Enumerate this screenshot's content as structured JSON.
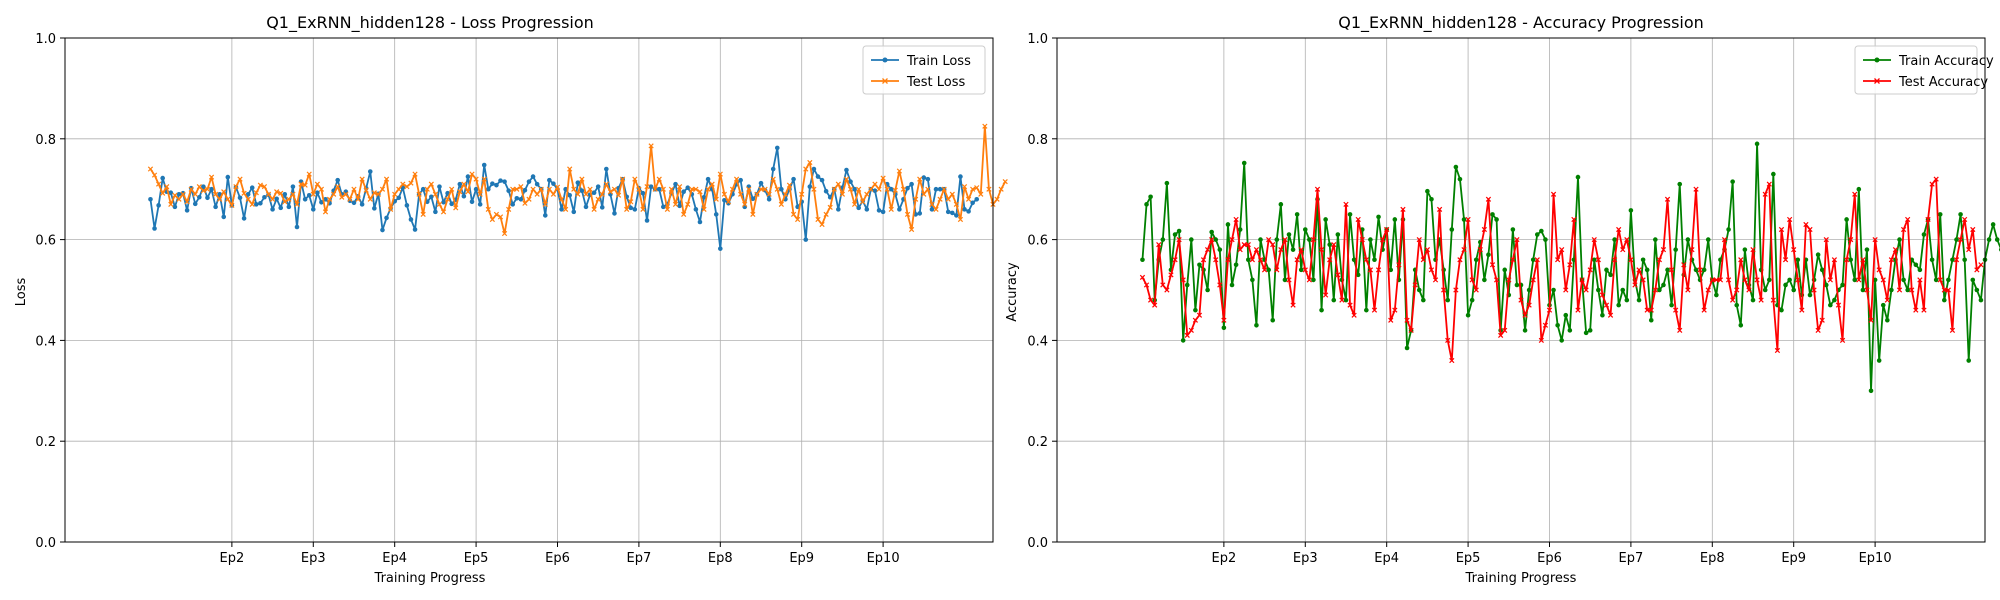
{
  "chart_data": [
    {
      "type": "line",
      "title": "Q1_ExRNN_hidden128 - Loss Progression",
      "xlabel": "Training Progress",
      "ylabel": "Loss",
      "ylim": [
        0,
        1.0
      ],
      "yticks": [
        "0.0",
        "0.2",
        "0.4",
        "0.6",
        "0.8",
        "1.0"
      ],
      "xlim": [
        -21,
        207
      ],
      "x_tick_labels": [
        "Ep2",
        "Ep3",
        "Ep4",
        "Ep5",
        "Ep6",
        "Ep7",
        "Ep8",
        "Ep9",
        "Ep10"
      ],
      "x_tick_positions": [
        20,
        40,
        60,
        80,
        100,
        120,
        140,
        160,
        180
      ],
      "grid": true,
      "legend": "top-right",
      "series": [
        {
          "name": "Train Loss",
          "color": "#1f77b4",
          "marker": "circle",
          "values": [
            0.68,
            0.622,
            0.668,
            0.722,
            0.695,
            0.693,
            0.665,
            0.69,
            0.692,
            0.658,
            0.702,
            0.671,
            0.684,
            0.705,
            0.683,
            0.7,
            0.665,
            0.69,
            0.645,
            0.724,
            0.668,
            0.704,
            0.683,
            0.642,
            0.69,
            0.703,
            0.67,
            0.672,
            0.684,
            0.689,
            0.66,
            0.681,
            0.663,
            0.69,
            0.665,
            0.705,
            0.625,
            0.715,
            0.68,
            0.688,
            0.66,
            0.693,
            0.674,
            0.68,
            0.672,
            0.697,
            0.718,
            0.69,
            0.695,
            0.677,
            0.673,
            0.686,
            0.67,
            0.702,
            0.735,
            0.662,
            0.691,
            0.619,
            0.643,
            0.662,
            0.676,
            0.683,
            0.703,
            0.668,
            0.64,
            0.62,
            0.69,
            0.7,
            0.675,
            0.685,
            0.655,
            0.705,
            0.674,
            0.692,
            0.671,
            0.679,
            0.71,
            0.686,
            0.725,
            0.675,
            0.7,
            0.67,
            0.748,
            0.7,
            0.711,
            0.708,
            0.717,
            0.715,
            0.697,
            0.67,
            0.682,
            0.68,
            0.698,
            0.715,
            0.725,
            0.71,
            0.7,
            0.648,
            0.718,
            0.711,
            0.7,
            0.66,
            0.7,
            0.688,
            0.655,
            0.713,
            0.697,
            0.665,
            0.689,
            0.693,
            0.705,
            0.664,
            0.74,
            0.69,
            0.652,
            0.702,
            0.72,
            0.685,
            0.663,
            0.66,
            0.702,
            0.692,
            0.638,
            0.705,
            0.7,
            0.7,
            0.665,
            0.67,
            0.692,
            0.71,
            0.667,
            0.695,
            0.703,
            0.69,
            0.66,
            0.635,
            0.684,
            0.72,
            0.7,
            0.65,
            0.582,
            0.678,
            0.672,
            0.69,
            0.71,
            0.718,
            0.665,
            0.705,
            0.681,
            0.69,
            0.712,
            0.698,
            0.68,
            0.74,
            0.782,
            0.7,
            0.68,
            0.7,
            0.72,
            0.665,
            0.675,
            0.6,
            0.705,
            0.74,
            0.725,
            0.718,
            0.696,
            0.684,
            0.7,
            0.66,
            0.703,
            0.738,
            0.715,
            0.7,
            0.663,
            0.677,
            0.66,
            0.7,
            0.697,
            0.658,
            0.655,
            0.71,
            0.7,
            0.69,
            0.66,
            0.68,
            0.702,
            0.71,
            0.65,
            0.652,
            0.723,
            0.72,
            0.66,
            0.7,
            0.7,
            0.7,
            0.655,
            0.653,
            0.648,
            0.725,
            0.66,
            0.656,
            0.673,
            0.68
          ]
        },
        {
          "name": "Test Loss",
          "color": "#ff7f0e",
          "marker": "x",
          "values": [
            0.74,
            0.728,
            0.71,
            0.692,
            0.705,
            0.67,
            0.688,
            0.68,
            0.69,
            0.675,
            0.7,
            0.69,
            0.705,
            0.697,
            0.7,
            0.724,
            0.69,
            0.68,
            0.695,
            0.68,
            0.668,
            0.705,
            0.72,
            0.692,
            0.68,
            0.67,
            0.693,
            0.708,
            0.705,
            0.69,
            0.68,
            0.695,
            0.692,
            0.675,
            0.68,
            0.69,
            0.67,
            0.71,
            0.708,
            0.73,
            0.69,
            0.71,
            0.7,
            0.655,
            0.68,
            0.69,
            0.705,
            0.684,
            0.69,
            0.68,
            0.7,
            0.68,
            0.72,
            0.698,
            0.68,
            0.693,
            0.69,
            0.7,
            0.72,
            0.66,
            0.69,
            0.7,
            0.71,
            0.705,
            0.712,
            0.73,
            0.69,
            0.65,
            0.7,
            0.71,
            0.69,
            0.67,
            0.655,
            0.68,
            0.7,
            0.663,
            0.695,
            0.71,
            0.695,
            0.73,
            0.72,
            0.69,
            0.72,
            0.66,
            0.64,
            0.65,
            0.645,
            0.612,
            0.66,
            0.7,
            0.7,
            0.705,
            0.672,
            0.68,
            0.7,
            0.69,
            0.7,
            0.67,
            0.7,
            0.69,
            0.704,
            0.68,
            0.66,
            0.74,
            0.7,
            0.69,
            0.72,
            0.69,
            0.7,
            0.66,
            0.68,
            0.69,
            0.71,
            0.695,
            0.7,
            0.688,
            0.72,
            0.66,
            0.675,
            0.72,
            0.7,
            0.66,
            0.705,
            0.786,
            0.7,
            0.72,
            0.7,
            0.66,
            0.7,
            0.67,
            0.705,
            0.65,
            0.67,
            0.7,
            0.7,
            0.695,
            0.66,
            0.7,
            0.71,
            0.68,
            0.73,
            0.69,
            0.675,
            0.7,
            0.72,
            0.69,
            0.67,
            0.7,
            0.65,
            0.69,
            0.7,
            0.7,
            0.69,
            0.72,
            0.7,
            0.67,
            0.69,
            0.708,
            0.65,
            0.64,
            0.69,
            0.74,
            0.753,
            0.7,
            0.64,
            0.63,
            0.65,
            0.664,
            0.7,
            0.71,
            0.69,
            0.72,
            0.7,
            0.67,
            0.7,
            0.675,
            0.69,
            0.7,
            0.71,
            0.7,
            0.722,
            0.7,
            0.66,
            0.698,
            0.736,
            0.7,
            0.65,
            0.62,
            0.68,
            0.72,
            0.69,
            0.7,
            0.67,
            0.66,
            0.68,
            0.7,
            0.68,
            0.69,
            0.67,
            0.64,
            0.705,
            0.68,
            0.7,
            0.703,
            0.69,
            0.825,
            0.7,
            0.67,
            0.68,
            0.7,
            0.715
          ]
        }
      ]
    },
    {
      "type": "line",
      "title": "Q1_ExRNN_hidden128 - Accuracy Progression",
      "xlabel": "Training Progress",
      "ylabel": "Accuracy",
      "ylim": [
        0,
        1.0
      ],
      "yticks": [
        "0.0",
        "0.2",
        "0.4",
        "0.6",
        "0.8",
        "1.0"
      ],
      "xlim": [
        -21,
        207
      ],
      "x_tick_labels": [
        "Ep2",
        "Ep3",
        "Ep4",
        "Ep5",
        "Ep6",
        "Ep7",
        "Ep8",
        "Ep9",
        "Ep10"
      ],
      "x_tick_positions": [
        20,
        40,
        60,
        80,
        100,
        120,
        140,
        160,
        180
      ],
      "grid": true,
      "legend": "top-right",
      "series": [
        {
          "name": "Train Accuracy",
          "color": "#008000",
          "marker": "circle",
          "values": [
            0.56,
            0.67,
            0.685,
            0.48,
            0.56,
            0.6,
            0.712,
            0.54,
            0.61,
            0.617,
            0.4,
            0.51,
            0.6,
            0.46,
            0.55,
            0.54,
            0.5,
            0.615,
            0.6,
            0.58,
            0.425,
            0.63,
            0.51,
            0.55,
            0.62,
            0.752,
            0.56,
            0.52,
            0.43,
            0.6,
            0.56,
            0.54,
            0.44,
            0.6,
            0.67,
            0.52,
            0.61,
            0.58,
            0.65,
            0.54,
            0.62,
            0.6,
            0.52,
            0.68,
            0.46,
            0.64,
            0.59,
            0.48,
            0.61,
            0.52,
            0.48,
            0.65,
            0.56,
            0.53,
            0.62,
            0.46,
            0.6,
            0.56,
            0.645,
            0.58,
            0.62,
            0.54,
            0.64,
            0.52,
            0.64,
            0.385,
            0.42,
            0.54,
            0.5,
            0.48,
            0.696,
            0.68,
            0.56,
            0.6,
            0.54,
            0.48,
            0.62,
            0.744,
            0.72,
            0.64,
            0.45,
            0.48,
            0.56,
            0.595,
            0.52,
            0.57,
            0.65,
            0.64,
            0.42,
            0.54,
            0.49,
            0.62,
            0.51,
            0.51,
            0.42,
            0.5,
            0.56,
            0.61,
            0.617,
            0.6,
            0.47,
            0.5,
            0.43,
            0.4,
            0.45,
            0.42,
            0.56,
            0.724,
            0.52,
            0.415,
            0.42,
            0.56,
            0.5,
            0.45,
            0.54,
            0.53,
            0.6,
            0.47,
            0.5,
            0.48,
            0.658,
            0.52,
            0.48,
            0.56,
            0.54,
            0.44,
            0.6,
            0.5,
            0.51,
            0.54,
            0.47,
            0.58,
            0.71,
            0.53,
            0.6,
            0.56,
            0.54,
            0.52,
            0.54,
            0.6,
            0.52,
            0.49,
            0.56,
            0.58,
            0.62,
            0.715,
            0.47,
            0.43,
            0.58,
            0.51,
            0.48,
            0.79,
            0.54,
            0.5,
            0.52,
            0.73,
            0.47,
            0.46,
            0.51,
            0.52,
            0.5,
            0.56,
            0.49,
            0.56,
            0.49,
            0.52,
            0.57,
            0.54,
            0.51,
            0.47,
            0.48,
            0.5,
            0.51,
            0.64,
            0.56,
            0.52,
            0.7,
            0.5,
            0.58,
            0.3,
            0.52,
            0.36,
            0.47,
            0.44,
            0.5,
            0.56,
            0.6,
            0.52,
            0.5,
            0.56,
            0.55,
            0.54,
            0.61,
            0.64,
            0.56,
            0.52,
            0.65,
            0.48,
            0.52,
            0.56,
            0.6,
            0.65,
            0.56,
            0.36,
            0.52,
            0.5,
            0.48,
            0.56,
            0.6,
            0.63,
            0.6,
            0.58,
            0.6,
            0.595,
            0.595
          ]
        },
        {
          "name": "Test Accuracy",
          "color": "#ff0000",
          "marker": "x",
          "values": [
            0.525,
            0.51,
            0.48,
            0.47,
            0.59,
            0.51,
            0.5,
            0.53,
            0.56,
            0.6,
            0.52,
            0.41,
            0.42,
            0.44,
            0.45,
            0.56,
            0.58,
            0.6,
            0.56,
            0.51,
            0.44,
            0.56,
            0.6,
            0.64,
            0.58,
            0.59,
            0.59,
            0.56,
            0.58,
            0.56,
            0.54,
            0.6,
            0.59,
            0.54,
            0.58,
            0.6,
            0.52,
            0.47,
            0.56,
            0.58,
            0.54,
            0.52,
            0.6,
            0.7,
            0.58,
            0.49,
            0.56,
            0.59,
            0.53,
            0.48,
            0.67,
            0.47,
            0.45,
            0.64,
            0.6,
            0.56,
            0.54,
            0.46,
            0.54,
            0.6,
            0.62,
            0.44,
            0.46,
            0.55,
            0.66,
            0.44,
            0.42,
            0.51,
            0.6,
            0.56,
            0.58,
            0.54,
            0.52,
            0.66,
            0.5,
            0.4,
            0.36,
            0.5,
            0.56,
            0.58,
            0.64,
            0.52,
            0.5,
            0.58,
            0.62,
            0.68,
            0.55,
            0.52,
            0.41,
            0.42,
            0.52,
            0.56,
            0.6,
            0.48,
            0.45,
            0.47,
            0.52,
            0.56,
            0.4,
            0.43,
            0.46,
            0.69,
            0.56,
            0.58,
            0.5,
            0.55,
            0.64,
            0.46,
            0.52,
            0.5,
            0.54,
            0.6,
            0.56,
            0.49,
            0.47,
            0.45,
            0.56,
            0.62,
            0.58,
            0.6,
            0.56,
            0.51,
            0.54,
            0.52,
            0.46,
            0.46,
            0.5,
            0.56,
            0.58,
            0.68,
            0.54,
            0.46,
            0.42,
            0.55,
            0.5,
            0.58,
            0.7,
            0.54,
            0.46,
            0.5,
            0.52,
            0.52,
            0.52,
            0.6,
            0.52,
            0.48,
            0.5,
            0.56,
            0.52,
            0.5,
            0.58,
            0.52,
            0.48,
            0.69,
            0.71,
            0.48,
            0.38,
            0.62,
            0.56,
            0.64,
            0.58,
            0.52,
            0.46,
            0.63,
            0.62,
            0.5,
            0.42,
            0.44,
            0.6,
            0.52,
            0.56,
            0.47,
            0.4,
            0.56,
            0.6,
            0.69,
            0.52,
            0.56,
            0.5,
            0.44,
            0.6,
            0.54,
            0.52,
            0.48,
            0.56,
            0.58,
            0.5,
            0.62,
            0.64,
            0.5,
            0.46,
            0.52,
            0.46,
            0.64,
            0.71,
            0.72,
            0.52,
            0.5,
            0.5,
            0.42,
            0.56,
            0.6,
            0.64,
            0.58,
            0.62,
            0.54,
            0.55
          ]
        }
      ]
    }
  ]
}
